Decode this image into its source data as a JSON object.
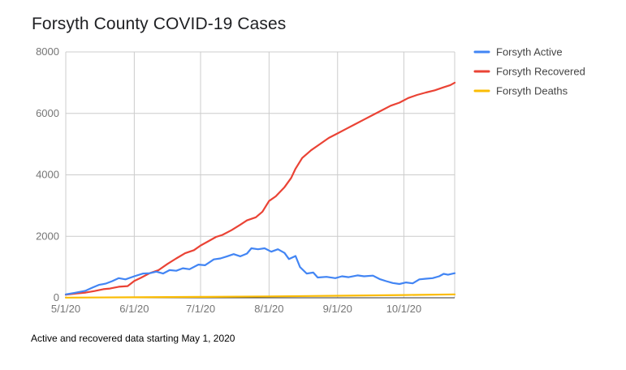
{
  "title": "Forsyth County COVID-19 Cases",
  "caption": "Active and recovered data starting May 1, 2020",
  "chart_data": {
    "type": "line",
    "title": "Forsyth County COVID-19 Cases",
    "xlabel": "",
    "ylabel": "",
    "ylim": [
      0,
      8000
    ],
    "y_ticks": [
      0,
      2000,
      4000,
      6000,
      8000
    ],
    "x_ticks": [
      "5/1/20",
      "6/1/20",
      "7/1/20",
      "8/1/20",
      "9/1/20",
      "10/1/20"
    ],
    "x_start": "2020-05-01",
    "x_end": "2020-10-24",
    "grid": true,
    "legend_position": "right",
    "series": [
      {
        "name": "Forsyth Active",
        "color": "#4285f4",
        "points": [
          [
            "5/1/20",
            110
          ],
          [
            "5/5/20",
            160
          ],
          [
            "5/10/20",
            230
          ],
          [
            "5/13/20",
            330
          ],
          [
            "5/16/20",
            420
          ],
          [
            "5/19/20",
            460
          ],
          [
            "5/22/20",
            540
          ],
          [
            "5/25/20",
            640
          ],
          [
            "5/28/20",
            600
          ],
          [
            "6/1/20",
            700
          ],
          [
            "6/5/20",
            790
          ],
          [
            "6/8/20",
            800
          ],
          [
            "6/11/20",
            850
          ],
          [
            "6/14/20",
            790
          ],
          [
            "6/17/20",
            900
          ],
          [
            "6/20/20",
            880
          ],
          [
            "6/23/20",
            960
          ],
          [
            "6/26/20",
            930
          ],
          [
            "6/30/20",
            1080
          ],
          [
            "7/3/20",
            1060
          ],
          [
            "7/7/20",
            1250
          ],
          [
            "7/10/20",
            1280
          ],
          [
            "7/13/20",
            1350
          ],
          [
            "7/16/20",
            1420
          ],
          [
            "7/19/20",
            1350
          ],
          [
            "7/22/20",
            1440
          ],
          [
            "7/24/20",
            1610
          ],
          [
            "7/27/20",
            1580
          ],
          [
            "7/30/20",
            1610
          ],
          [
            "8/2/20",
            1500
          ],
          [
            "8/5/20",
            1580
          ],
          [
            "8/8/20",
            1460
          ],
          [
            "8/10/20",
            1260
          ],
          [
            "8/13/20",
            1360
          ],
          [
            "8/15/20",
            1000
          ],
          [
            "8/18/20",
            790
          ],
          [
            "8/21/20",
            820
          ],
          [
            "8/23/20",
            660
          ],
          [
            "8/27/20",
            680
          ],
          [
            "8/31/20",
            640
          ],
          [
            "9/3/20",
            700
          ],
          [
            "9/6/20",
            670
          ],
          [
            "9/10/20",
            730
          ],
          [
            "9/13/20",
            700
          ],
          [
            "9/17/20",
            720
          ],
          [
            "9/20/20",
            610
          ],
          [
            "9/23/20",
            540
          ],
          [
            "9/26/20",
            480
          ],
          [
            "9/29/20",
            450
          ],
          [
            "10/2/20",
            500
          ],
          [
            "10/5/20",
            470
          ],
          [
            "10/8/20",
            600
          ],
          [
            "10/11/20",
            620
          ],
          [
            "10/14/20",
            640
          ],
          [
            "10/17/20",
            700
          ],
          [
            "10/19/20",
            780
          ],
          [
            "10/21/20",
            750
          ],
          [
            "10/24/20",
            800
          ]
        ]
      },
      {
        "name": "Forsyth Recovered",
        "color": "#ea4335",
        "points": [
          [
            "5/1/20",
            100
          ],
          [
            "5/6/20",
            140
          ],
          [
            "5/10/20",
            170
          ],
          [
            "5/14/20",
            220
          ],
          [
            "5/18/20",
            280
          ],
          [
            "5/21/20",
            300
          ],
          [
            "5/25/20",
            360
          ],
          [
            "5/29/20",
            380
          ],
          [
            "6/1/20",
            550
          ],
          [
            "6/4/20",
            650
          ],
          [
            "6/8/20",
            800
          ],
          [
            "6/12/20",
            900
          ],
          [
            "6/16/20",
            1100
          ],
          [
            "6/20/20",
            1280
          ],
          [
            "6/24/20",
            1450
          ],
          [
            "6/28/20",
            1550
          ],
          [
            "7/1/20",
            1700
          ],
          [
            "7/4/20",
            1820
          ],
          [
            "7/8/20",
            1980
          ],
          [
            "7/11/20",
            2050
          ],
          [
            "7/15/20",
            2200
          ],
          [
            "7/19/20",
            2380
          ],
          [
            "7/22/20",
            2520
          ],
          [
            "7/26/20",
            2620
          ],
          [
            "7/29/20",
            2800
          ],
          [
            "8/1/20",
            3150
          ],
          [
            "8/4/20",
            3300
          ],
          [
            "8/8/20",
            3600
          ],
          [
            "8/11/20",
            3900
          ],
          [
            "8/13/20",
            4200
          ],
          [
            "8/16/20",
            4550
          ],
          [
            "8/20/20",
            4800
          ],
          [
            "8/24/20",
            5000
          ],
          [
            "8/28/20",
            5200
          ],
          [
            "9/1/20",
            5350
          ],
          [
            "9/5/20",
            5500
          ],
          [
            "9/9/20",
            5650
          ],
          [
            "9/13/20",
            5800
          ],
          [
            "9/17/20",
            5950
          ],
          [
            "9/21/20",
            6100
          ],
          [
            "9/25/20",
            6250
          ],
          [
            "9/29/20",
            6350
          ],
          [
            "10/3/20",
            6500
          ],
          [
            "10/7/20",
            6600
          ],
          [
            "10/11/20",
            6680
          ],
          [
            "10/15/20",
            6750
          ],
          [
            "10/19/20",
            6850
          ],
          [
            "10/22/20",
            6920
          ],
          [
            "10/24/20",
            7000
          ]
        ]
      },
      {
        "name": "Forsyth Deaths",
        "color": "#fbbc04",
        "points": [
          [
            "5/1/20",
            5
          ],
          [
            "6/1/20",
            15
          ],
          [
            "7/1/20",
            30
          ],
          [
            "8/1/20",
            45
          ],
          [
            "9/1/20",
            65
          ],
          [
            "10/1/20",
            90
          ],
          [
            "10/24/20",
            110
          ]
        ]
      }
    ]
  }
}
